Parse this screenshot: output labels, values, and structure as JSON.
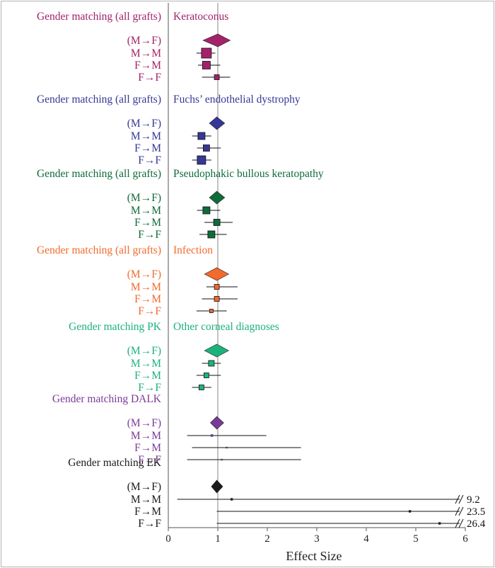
{
  "chart_data": {
    "type": "forest",
    "xlabel": "Effect Size",
    "xlim": [
      0,
      6
    ],
    "xticks": [
      0,
      1,
      2,
      3,
      4,
      5,
      6
    ],
    "reference_line": 1,
    "groups": [
      {
        "heading": "Gender matching (all grafts)",
        "diagnosis": "Keratoconus",
        "color": "#a3226a",
        "rows": [
          {
            "label": "(M→F)",
            "kind": "diamond",
            "est": 1.0,
            "lo": 0.7,
            "hi": 1.25
          },
          {
            "label": "M→M",
            "kind": "box",
            "est": 0.77,
            "lo": 0.57,
            "hi": 0.95,
            "size": 14
          },
          {
            "label": "F→M",
            "kind": "box",
            "est": 0.77,
            "lo": 0.6,
            "hi": 1.05,
            "size": 11
          },
          {
            "label": "F→F",
            "kind": "box",
            "est": 0.98,
            "lo": 0.68,
            "hi": 1.25,
            "size": 7
          }
        ]
      },
      {
        "heading": "Gender matching (all grafts)",
        "diagnosis": "Fuchs’ endothelial dystrophy",
        "color": "#353896",
        "rows": [
          {
            "label": "(M→F)",
            "kind": "diamond",
            "est": 0.98,
            "lo": 0.83,
            "hi": 1.14
          },
          {
            "label": "M→M",
            "kind": "box",
            "est": 0.67,
            "lo": 0.48,
            "hi": 0.87,
            "size": 10
          },
          {
            "label": "F→M",
            "kind": "box",
            "est": 0.77,
            "lo": 0.58,
            "hi": 1.06,
            "size": 9
          },
          {
            "label": "F→F",
            "kind": "box",
            "est": 0.67,
            "lo": 0.48,
            "hi": 0.87,
            "size": 12
          }
        ]
      },
      {
        "heading": "Gender matching (all grafts)",
        "diagnosis": "Pseudophakic bullous keratopathy",
        "color": "#0e6b3a",
        "rows": [
          {
            "label": "(M→F)",
            "kind": "diamond",
            "est": 0.98,
            "lo": 0.83,
            "hi": 1.14
          },
          {
            "label": "M→M",
            "kind": "box",
            "est": 0.77,
            "lo": 0.58,
            "hi": 1.05,
            "size": 10
          },
          {
            "label": "F→M",
            "kind": "box",
            "est": 0.98,
            "lo": 0.73,
            "hi": 1.3,
            "size": 9
          },
          {
            "label": "F→F",
            "kind": "box",
            "est": 0.87,
            "lo": 0.63,
            "hi": 1.18,
            "size": 10
          }
        ]
      },
      {
        "heading": "Gender matching (all grafts)",
        "diagnosis": "Infection",
        "color": "#f26a2c",
        "rows": [
          {
            "label": "(M→F)",
            "kind": "diamond",
            "est": 0.98,
            "lo": 0.73,
            "hi": 1.22
          },
          {
            "label": "M→M",
            "kind": "box",
            "est": 0.98,
            "lo": 0.77,
            "hi": 1.4,
            "size": 7
          },
          {
            "label": "F→M",
            "kind": "box",
            "est": 0.98,
            "lo": 0.68,
            "hi": 1.4,
            "size": 7
          },
          {
            "label": "F→F",
            "kind": "box",
            "est": 0.87,
            "lo": 0.57,
            "hi": 1.18,
            "size": 5
          }
        ]
      },
      {
        "heading": "Gender matching PK",
        "diagnosis": "Other corneal diagnoses",
        "color": "#1cb27c",
        "rows": [
          {
            "label": "(M→F)",
            "kind": "diamond",
            "est": 0.98,
            "lo": 0.73,
            "hi": 1.22
          },
          {
            "label": "M→M",
            "kind": "box",
            "est": 0.87,
            "lo": 0.68,
            "hi": 1.06,
            "size": 8
          },
          {
            "label": "F→M",
            "kind": "box",
            "est": 0.77,
            "lo": 0.57,
            "hi": 1.06,
            "size": 7
          },
          {
            "label": "F→F",
            "kind": "box",
            "est": 0.67,
            "lo": 0.48,
            "hi": 0.87,
            "size": 7
          }
        ]
      },
      {
        "heading": "Gender matching DALK",
        "diagnosis": "",
        "color": "#7a3a97",
        "rows": [
          {
            "label": "(M→F)",
            "kind": "diamond",
            "est": 0.98,
            "lo": 0.85,
            "hi": 1.12
          },
          {
            "label": "M→M",
            "kind": "box",
            "est": 0.88,
            "lo": 0.38,
            "hi": 1.98,
            "size": 3
          },
          {
            "label": "F→M",
            "kind": "box",
            "est": 1.18,
            "lo": 0.48,
            "hi": 2.68,
            "size": 2
          },
          {
            "label": "F→F",
            "kind": "box",
            "est": 1.08,
            "lo": 0.38,
            "hi": 2.68,
            "size": 2
          }
        ]
      },
      {
        "heading": "Gender matching EK",
        "diagnosis": "",
        "color": "#1a1a1a",
        "rows": [
          {
            "label": "(M→F)",
            "kind": "diamond",
            "est": 0.98,
            "lo": 0.87,
            "hi": 1.1
          },
          {
            "label": "M→M",
            "kind": "box",
            "est": 1.28,
            "lo": 0.18,
            "hi": 9.2,
            "size": 3,
            "truncated_label": "9.2"
          },
          {
            "label": "F→M",
            "kind": "box",
            "est": 4.88,
            "lo": 0.98,
            "hi": 23.5,
            "size": 3,
            "truncated_label": "23.5"
          },
          {
            "label": "F→F",
            "kind": "box",
            "est": 5.48,
            "lo": 0.98,
            "hi": 26.4,
            "size": 3,
            "truncated_label": "26.4"
          }
        ]
      }
    ]
  }
}
